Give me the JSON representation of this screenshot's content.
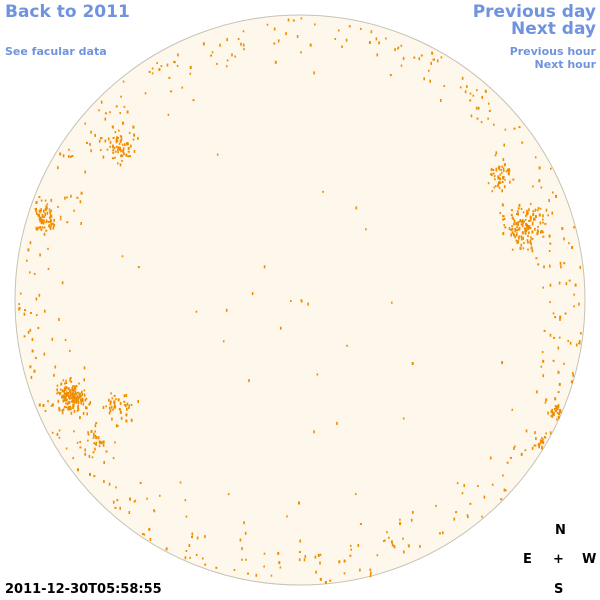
{
  "nav": {
    "back_to_year": "Back to 2011",
    "see_facular": "See facular data",
    "previous_day": "Previous day",
    "next_day": "Next day",
    "previous_hour": "Previous hour",
    "next_hour": "Next hour"
  },
  "compass": {
    "north": "N",
    "east": "E",
    "center": "+",
    "west": "W",
    "south": "S"
  },
  "timestamp": "2011-12-30T05:58:55",
  "colors": {
    "disk_fill": "#fef8ec",
    "disk_stroke": "#c8c2b6",
    "spot_color": "#ef8c00",
    "link_color": "#6f93de"
  }
}
